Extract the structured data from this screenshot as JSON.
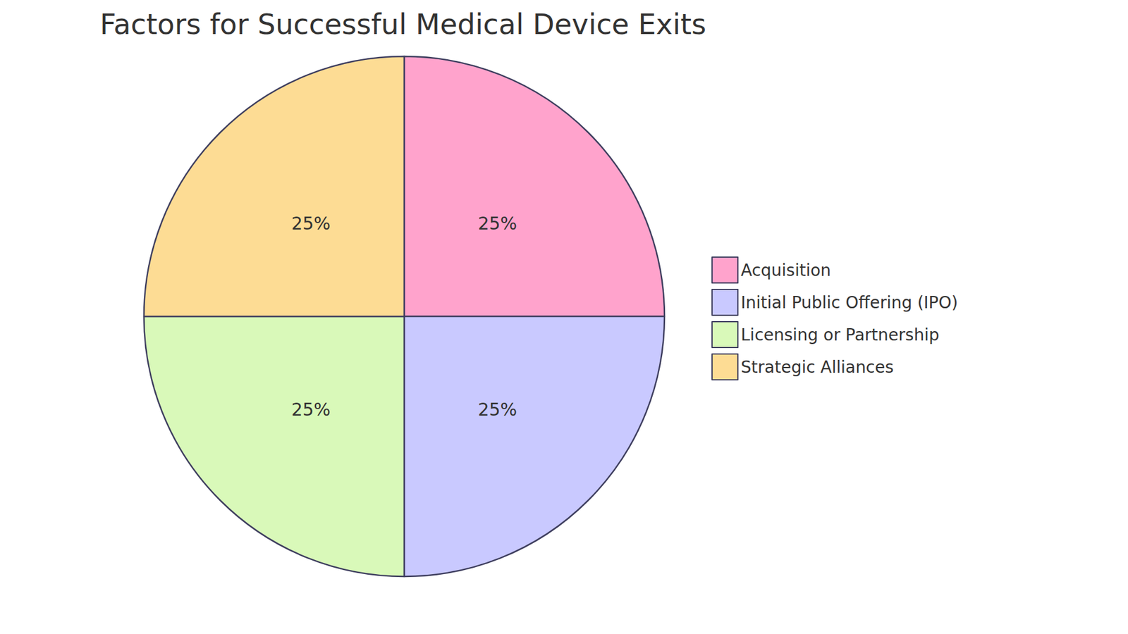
{
  "chart_data": {
    "type": "pie",
    "title": "Factors for Successful Medical Device Exits",
    "categories": [
      "Acquisition",
      "Initial Public Offering (IPO)",
      "Licensing or Partnership",
      "Strategic Alliances"
    ],
    "values": [
      25,
      25,
      25,
      25
    ],
    "value_labels": [
      "25%",
      "25%",
      "25%",
      "25%"
    ],
    "colors": [
      "#ffa3cc",
      "#c9c9ff",
      "#d9f9b9",
      "#fddc94"
    ],
    "data_labels": true,
    "legend": "right"
  }
}
